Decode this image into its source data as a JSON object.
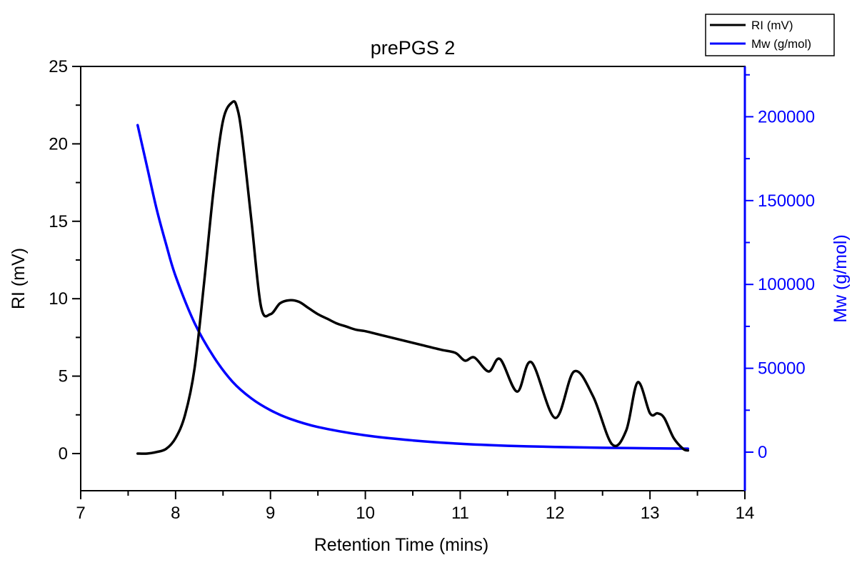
{
  "chart_data": {
    "type": "line",
    "title": "prePGS 2",
    "xlabel": "Retention Time (mins)",
    "ylabel": "RI (mV)",
    "y2label": "Mw (g/mol)",
    "xlim": [
      7,
      14
    ],
    "ylim": [
      -2.4,
      25
    ],
    "y2lim": [
      -23000,
      230000
    ],
    "xticks": [
      7,
      8,
      9,
      10,
      11,
      12,
      13,
      14
    ],
    "yticks": [
      0,
      5,
      10,
      15,
      20,
      25
    ],
    "y2ticks": [
      0,
      50000,
      100000,
      150000,
      200000
    ],
    "legend_position": "top-right",
    "grid": false,
    "colors": {
      "ri": "#000000",
      "mw": "#0000ff",
      "axis": "#000000",
      "axis2": "#0000ff"
    },
    "series": [
      {
        "name": "RI (mV)",
        "axis": "left",
        "x": [
          7.6,
          7.7,
          7.8,
          7.9,
          8.0,
          8.1,
          8.2,
          8.3,
          8.4,
          8.5,
          8.6,
          8.65,
          8.7,
          8.8,
          8.9,
          9.0,
          9.1,
          9.2,
          9.3,
          9.4,
          9.5,
          9.6,
          9.7,
          9.8,
          9.9,
          10.0,
          10.2,
          10.4,
          10.6,
          10.8,
          10.95,
          11.05,
          11.15,
          11.3,
          11.42,
          11.6,
          11.75,
          12.0,
          12.2,
          12.4,
          12.6,
          12.75,
          12.87,
          13.0,
          13.08,
          13.15,
          13.25,
          13.35,
          13.4
        ],
        "values": [
          0,
          0,
          0.1,
          0.3,
          1.0,
          2.5,
          5.5,
          11,
          17,
          21.5,
          22.7,
          22.3,
          20.5,
          15,
          9.5,
          9.0,
          9.7,
          9.9,
          9.8,
          9.4,
          9.0,
          8.7,
          8.4,
          8.2,
          8.0,
          7.9,
          7.6,
          7.3,
          7.0,
          6.7,
          6.5,
          6.0,
          6.2,
          5.3,
          6.1,
          4.0,
          5.9,
          2.3,
          5.3,
          3.7,
          0.6,
          1.5,
          4.6,
          2.6,
          2.6,
          2.3,
          1.0,
          0.3,
          0.2
        ]
      },
      {
        "name": "Mw (g/mol)",
        "axis": "right",
        "x": [
          7.6,
          7.7,
          7.8,
          7.9,
          8.0,
          8.2,
          8.4,
          8.6,
          8.8,
          9.0,
          9.2,
          9.5,
          10.0,
          10.5,
          11.0,
          11.5,
          12.0,
          12.5,
          13.0,
          13.4
        ],
        "values": [
          195000,
          170000,
          145000,
          124000,
          105000,
          77000,
          57000,
          42000,
          32000,
          25000,
          20000,
          15000,
          10000,
          7000,
          5000,
          3800,
          3100,
          2600,
          2300,
          2100
        ]
      }
    ]
  }
}
